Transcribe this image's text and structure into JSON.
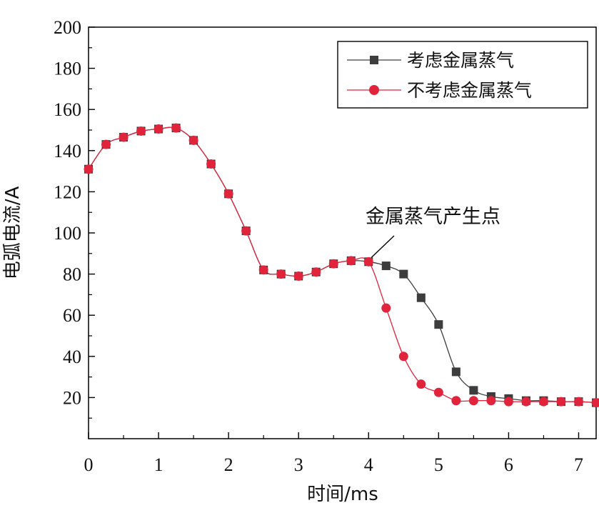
{
  "chart_data": {
    "type": "line",
    "xlabel": "时间/ms",
    "ylabel": "电弧电流/A",
    "xlim": [
      0,
      7.25
    ],
    "ylim": [
      0,
      200
    ],
    "xticks": [
      0,
      1,
      2,
      3,
      4,
      5,
      6,
      7
    ],
    "yticks": [
      20,
      40,
      60,
      80,
      100,
      120,
      140,
      160,
      180,
      200
    ],
    "grid": false,
    "legend_position": "top-right",
    "series": [
      {
        "name": "考虑金属蒸气",
        "marker": "square",
        "color": "#3d3d3d",
        "x": [
          0,
          0.25,
          0.5,
          0.75,
          1.0,
          1.25,
          1.5,
          1.75,
          2.0,
          2.25,
          2.5,
          2.75,
          3.0,
          3.25,
          3.5,
          3.75,
          4.0,
          4.25,
          4.5,
          4.75,
          5.0,
          5.25,
          5.5,
          5.75,
          6.0,
          6.25,
          6.5,
          6.75,
          7.0,
          7.25
        ],
        "values": [
          131,
          143,
          146.5,
          149.5,
          150.5,
          151,
          145,
          133.5,
          119,
          101,
          82,
          80,
          79,
          81,
          85,
          86.5,
          86,
          84,
          80,
          68.5,
          55.5,
          32.5,
          23.5,
          20.5,
          19.5,
          18.5,
          18.5,
          18,
          18,
          17.5
        ]
      },
      {
        "name": "不考虑金属蒸气",
        "marker": "circle",
        "color": "#e0243c",
        "x": [
          0,
          0.25,
          0.5,
          0.75,
          1.0,
          1.25,
          1.5,
          1.75,
          2.0,
          2.25,
          2.5,
          2.75,
          3.0,
          3.25,
          3.5,
          3.75,
          4.0,
          4.25,
          4.5,
          4.75,
          5.0,
          5.25,
          5.5,
          5.75,
          6.0,
          6.25,
          6.5,
          6.75,
          7.0,
          7.25
        ],
        "values": [
          131,
          143,
          146.5,
          149.5,
          150.5,
          151,
          145,
          133.5,
          119,
          101,
          82,
          80,
          79,
          81,
          85,
          86.5,
          86,
          63.5,
          40,
          26.5,
          22.5,
          18.5,
          18.5,
          18.5,
          18,
          18,
          18,
          18,
          18,
          17.5
        ]
      }
    ],
    "annotations": [
      {
        "text": "金属蒸气产生点",
        "x": 4.0,
        "y": 86
      }
    ]
  }
}
